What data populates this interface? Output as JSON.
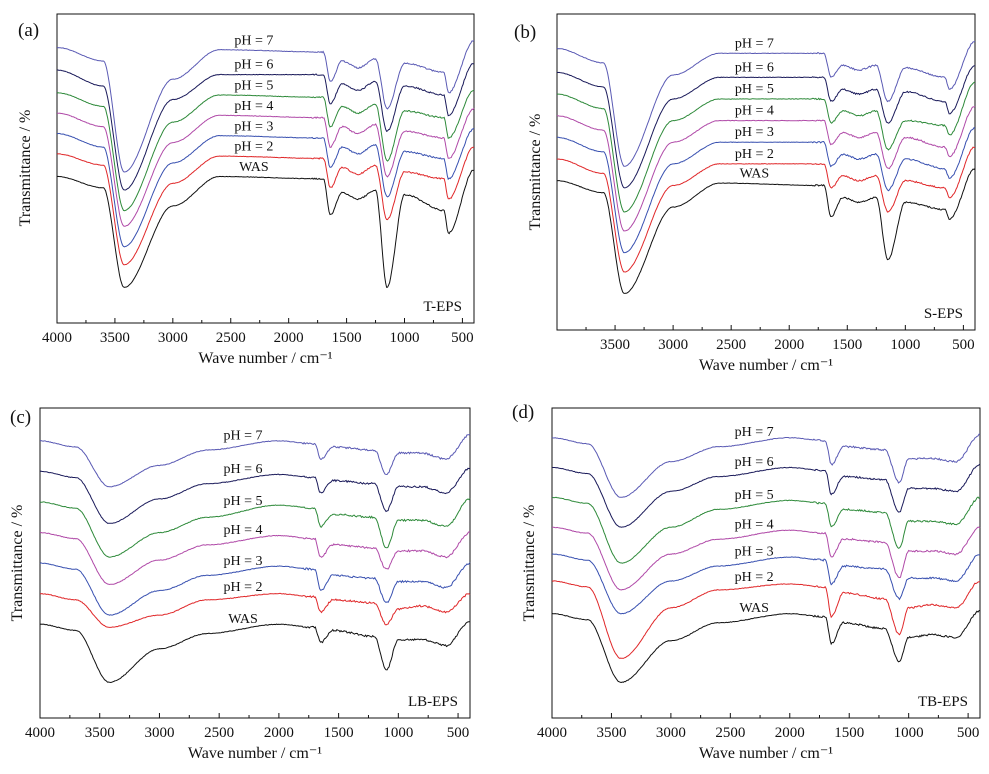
{
  "figure": {
    "panels": [
      {
        "letter": "(a)",
        "name": "T-EPS"
      },
      {
        "letter": "(b)",
        "name": "S-EPS"
      },
      {
        "letter": "(c)",
        "name": "LB-EPS"
      },
      {
        "letter": "(d)",
        "name": "TB-EPS"
      }
    ],
    "colors": {
      "pH = 7": "#5a5ab4",
      "pH = 6": "#1a1a5a",
      "pH = 5": "#2e8a3a",
      "pH = 4": "#b04aa8",
      "pH = 3": "#3850b0",
      "pH = 2": "#e0282a",
      "WAS": "#111111"
    }
  },
  "chart_data": [
    {
      "type": "line",
      "panel": "(a)",
      "title": "T-EPS",
      "xlabel": "Wave number / cm⁻¹",
      "ylabel": "Transmittance / %",
      "xlim": [
        4000,
        400
      ],
      "x_reversed": true,
      "xticks": [
        4000,
        3500,
        3000,
        2500,
        2000,
        1500,
        1000,
        500
      ],
      "y_ticks_shown": false,
      "series": [
        {
          "name": "pH = 7",
          "x": [
            4000,
            3600,
            3420,
            3000,
            2600,
            1700,
            1640,
            1540,
            1400,
            1250,
            1150,
            1000,
            660,
            620,
            400
          ],
          "values": [
            10.0,
            9.4,
            4.5,
            8.6,
            9.9,
            9.8,
            8.5,
            9.4,
            9.1,
            9.5,
            7.3,
            9.3,
            8.9,
            8.0,
            10.3
          ]
        },
        {
          "name": "pH = 6",
          "x": [
            4000,
            3600,
            3420,
            3000,
            2600,
            1700,
            1640,
            1540,
            1400,
            1250,
            1150,
            1000,
            660,
            620,
            400
          ],
          "values": [
            9.0,
            8.3,
            3.7,
            7.7,
            8.8,
            8.8,
            7.5,
            8.4,
            8.1,
            8.5,
            6.3,
            8.3,
            7.9,
            7.0,
            9.3
          ]
        },
        {
          "name": "pH = 5",
          "x": [
            4000,
            3600,
            3420,
            3000,
            2600,
            1700,
            1640,
            1540,
            1400,
            1250,
            1150,
            1000,
            660,
            620,
            400
          ],
          "values": [
            8.0,
            7.4,
            2.8,
            6.7,
            7.9,
            7.8,
            6.5,
            7.4,
            7.1,
            7.5,
            5.0,
            7.2,
            6.9,
            6.0,
            8.1
          ]
        },
        {
          "name": "pH = 4",
          "x": [
            4000,
            3600,
            3420,
            3000,
            2600,
            1700,
            1640,
            1540,
            1400,
            1250,
            1150,
            1000,
            660,
            620,
            400
          ],
          "values": [
            7.1,
            6.5,
            2.1,
            5.8,
            7.0,
            6.9,
            5.6,
            6.5,
            6.2,
            6.6,
            4.3,
            6.3,
            6.0,
            5.1,
            7.3
          ]
        },
        {
          "name": "pH = 3",
          "x": [
            4000,
            3600,
            3420,
            3000,
            2600,
            1700,
            1640,
            1540,
            1400,
            1250,
            1150,
            1000,
            660,
            620,
            400
          ],
          "values": [
            6.2,
            5.6,
            1.2,
            4.9,
            6.1,
            6.0,
            4.7,
            5.6,
            5.3,
            5.7,
            3.4,
            5.4,
            5.1,
            4.2,
            6.4
          ]
        },
        {
          "name": "pH = 2",
          "x": [
            4000,
            3600,
            3420,
            3000,
            2600,
            1700,
            1640,
            1540,
            1400,
            1250,
            1150,
            1000,
            660,
            620,
            400
          ],
          "values": [
            5.3,
            4.8,
            0.4,
            4.0,
            5.2,
            5.1,
            3.8,
            4.7,
            4.4,
            4.8,
            2.4,
            4.5,
            4.2,
            3.3,
            5.6
          ]
        },
        {
          "name": "WAS",
          "x": [
            4000,
            3600,
            3420,
            3000,
            2600,
            1700,
            1640,
            1540,
            1400,
            1250,
            1150,
            1000,
            660,
            620,
            400
          ],
          "values": [
            4.3,
            3.8,
            -0.6,
            3.0,
            4.3,
            4.2,
            2.6,
            3.6,
            3.3,
            3.7,
            -0.6,
            3.5,
            2.8,
            1.8,
            4.6
          ]
        }
      ]
    },
    {
      "type": "line",
      "panel": "(b)",
      "title": "S-EPS",
      "xlabel": "Wave number / cm⁻¹",
      "ylabel": "Transmittance / %",
      "xlim": [
        4000,
        400
      ],
      "x_reversed": true,
      "xticks": [
        3500,
        3000,
        2500,
        2000,
        1500,
        1000,
        500
      ],
      "y_ticks_shown": false,
      "series": [
        {
          "name": "pH = 7",
          "x": [
            4000,
            3600,
            3420,
            3000,
            2600,
            1700,
            1640,
            1540,
            1400,
            1250,
            1150,
            1000,
            660,
            620,
            400
          ],
          "values": [
            10.0,
            9.4,
            5.1,
            8.9,
            9.8,
            9.8,
            8.8,
            9.3,
            9.1,
            9.3,
            7.8,
            9.2,
            8.8,
            8.3,
            10.3
          ]
        },
        {
          "name": "pH = 6",
          "x": [
            4000,
            3600,
            3420,
            3000,
            2600,
            1700,
            1640,
            1540,
            1400,
            1250,
            1150,
            1000,
            660,
            620,
            400
          ],
          "values": [
            9.0,
            8.4,
            4.2,
            7.9,
            8.8,
            8.8,
            7.8,
            8.3,
            8.1,
            8.3,
            6.9,
            8.2,
            7.8,
            7.3,
            9.3
          ]
        },
        {
          "name": "pH = 5",
          "x": [
            4000,
            3600,
            3420,
            3000,
            2600,
            1700,
            1640,
            1540,
            1400,
            1250,
            1150,
            1000,
            660,
            620,
            400
          ],
          "values": [
            8.1,
            7.5,
            3.2,
            7.0,
            7.9,
            7.9,
            6.9,
            7.4,
            7.2,
            7.4,
            5.8,
            7.0,
            6.8,
            6.4,
            8.6
          ]
        },
        {
          "name": "pH = 4",
          "x": [
            4000,
            3600,
            3420,
            3000,
            2600,
            1700,
            1640,
            1540,
            1400,
            1250,
            1150,
            1000,
            660,
            620,
            400
          ],
          "values": [
            7.2,
            6.6,
            2.4,
            6.1,
            7.0,
            7.0,
            6.0,
            6.5,
            6.3,
            6.5,
            5.0,
            6.3,
            5.9,
            5.5,
            7.6
          ]
        },
        {
          "name": "pH = 3",
          "x": [
            4000,
            3600,
            3420,
            3000,
            2600,
            1700,
            1640,
            1540,
            1400,
            1250,
            1150,
            1000,
            660,
            620,
            400
          ],
          "values": [
            6.3,
            5.7,
            1.5,
            5.2,
            6.1,
            6.1,
            5.1,
            5.6,
            5.4,
            5.6,
            4.1,
            5.4,
            5.0,
            4.6,
            6.7
          ]
        },
        {
          "name": "pH = 2",
          "x": [
            4000,
            3600,
            3420,
            3000,
            2600,
            1700,
            1640,
            1540,
            1400,
            1250,
            1150,
            1000,
            660,
            620,
            400
          ],
          "values": [
            5.4,
            4.8,
            0.7,
            4.3,
            5.2,
            5.2,
            4.2,
            4.7,
            4.5,
            4.7,
            3.2,
            4.5,
            4.2,
            3.8,
            5.9
          ]
        },
        {
          "name": "WAS",
          "x": [
            4000,
            3600,
            3420,
            3000,
            2600,
            1700,
            1640,
            1540,
            1400,
            1250,
            1150,
            1000,
            660,
            620,
            400
          ],
          "values": [
            4.5,
            4.0,
            -0.2,
            3.4,
            4.4,
            4.3,
            3.0,
            3.8,
            3.6,
            3.8,
            1.2,
            3.6,
            3.3,
            2.9,
            5.0
          ]
        }
      ]
    },
    {
      "type": "line",
      "panel": "(c)",
      "title": "LB-EPS",
      "xlabel": "Wave number / cm⁻¹",
      "ylabel": "Transmittance / %",
      "xlim": [
        4000,
        400
      ],
      "x_reversed": true,
      "xticks": [
        4000,
        3500,
        3000,
        2500,
        2000,
        1500,
        1000,
        500
      ],
      "y_ticks_shown": false,
      "series": [
        {
          "name": "pH = 7",
          "x": [
            4000,
            3700,
            3420,
            3000,
            2600,
            2000,
            1700,
            1650,
            1550,
            1200,
            1100,
            1000,
            800,
            600,
            400
          ],
          "values": [
            10.0,
            9.8,
            8.5,
            9.2,
            9.7,
            10.0,
            9.9,
            9.4,
            9.8,
            9.7,
            8.9,
            9.6,
            9.6,
            9.4,
            10.2
          ]
        },
        {
          "name": "pH = 6",
          "x": [
            4000,
            3700,
            3420,
            3000,
            2600,
            2000,
            1700,
            1650,
            1550,
            1200,
            1100,
            1000,
            800,
            600,
            400
          ],
          "values": [
            9.0,
            8.8,
            7.3,
            8.1,
            8.6,
            8.9,
            8.8,
            8.3,
            8.7,
            8.6,
            7.7,
            8.5,
            8.5,
            8.3,
            9.1
          ]
        },
        {
          "name": "pH = 5",
          "x": [
            4000,
            3700,
            3420,
            3000,
            2600,
            2000,
            1700,
            1650,
            1550,
            1200,
            1100,
            1000,
            800,
            600,
            400
          ],
          "values": [
            8.0,
            7.8,
            6.2,
            7.0,
            7.5,
            7.9,
            7.8,
            7.2,
            7.6,
            7.5,
            6.5,
            7.4,
            7.4,
            7.2,
            8.1
          ]
        },
        {
          "name": "pH = 4",
          "x": [
            4000,
            3700,
            3420,
            3000,
            2600,
            2000,
            1700,
            1650,
            1550,
            1200,
            1100,
            1000,
            800,
            600,
            400
          ],
          "values": [
            7.0,
            6.8,
            5.3,
            6.1,
            6.6,
            6.9,
            6.8,
            6.2,
            6.6,
            6.5,
            5.8,
            6.4,
            6.4,
            6.2,
            7.0
          ]
        },
        {
          "name": "pH = 3",
          "x": [
            4000,
            3700,
            3420,
            3000,
            2600,
            2000,
            1700,
            1650,
            1550,
            1200,
            1100,
            1000,
            800,
            600,
            400
          ],
          "values": [
            6.0,
            5.8,
            4.3,
            5.1,
            5.6,
            5.9,
            5.8,
            5.1,
            5.6,
            5.5,
            4.7,
            5.4,
            5.4,
            5.2,
            6.0
          ]
        },
        {
          "name": "pH = 2",
          "x": [
            4000,
            3700,
            3420,
            3000,
            2600,
            2000,
            1700,
            1650,
            1550,
            1200,
            1100,
            1000,
            800,
            600,
            400
          ],
          "values": [
            5.0,
            4.8,
            3.9,
            4.3,
            4.8,
            5.0,
            4.9,
            4.4,
            4.8,
            4.7,
            4.0,
            4.5,
            4.6,
            4.4,
            5.0
          ]
        },
        {
          "name": "WAS",
          "x": [
            4000,
            3700,
            3420,
            3000,
            2600,
            2000,
            1700,
            1650,
            1550,
            1200,
            1100,
            1000,
            800,
            600,
            400
          ],
          "values": [
            4.0,
            3.8,
            2.1,
            3.2,
            3.7,
            4.0,
            3.9,
            3.4,
            3.8,
            3.6,
            2.5,
            3.5,
            3.5,
            3.3,
            4.1
          ]
        }
      ]
    },
    {
      "type": "line",
      "panel": "(d)",
      "title": "TB-EPS",
      "xlabel": "Wave number / cm⁻¹",
      "ylabel": "Transmittance / %",
      "xlim": [
        4000,
        400
      ],
      "x_reversed": true,
      "xticks": [
        4000,
        3500,
        3000,
        2500,
        2000,
        1500,
        1000,
        500
      ],
      "y_ticks_shown": false,
      "series": [
        {
          "name": "pH = 7",
          "x": [
            4000,
            3700,
            3420,
            3000,
            2600,
            2000,
            1700,
            1650,
            1550,
            1200,
            1080,
            1000,
            800,
            600,
            400
          ],
          "values": [
            10.0,
            9.8,
            8.0,
            9.2,
            9.7,
            10.0,
            9.9,
            9.1,
            9.7,
            9.6,
            8.5,
            9.3,
            9.3,
            9.2,
            10.1
          ]
        },
        {
          "name": "pH = 6",
          "x": [
            4000,
            3700,
            3420,
            3000,
            2600,
            2000,
            1700,
            1650,
            1550,
            1200,
            1080,
            1000,
            800,
            600,
            400
          ],
          "values": [
            9.0,
            8.8,
            7.0,
            8.2,
            8.7,
            9.0,
            8.9,
            8.1,
            8.7,
            8.6,
            7.5,
            8.3,
            8.3,
            8.2,
            9.1
          ]
        },
        {
          "name": "pH = 5",
          "x": [
            4000,
            3700,
            3420,
            3000,
            2600,
            2000,
            1700,
            1650,
            1550,
            1200,
            1080,
            1000,
            800,
            600,
            400
          ],
          "values": [
            8.0,
            7.8,
            5.8,
            7.0,
            7.6,
            7.9,
            7.8,
            7.0,
            7.6,
            7.5,
            6.3,
            7.2,
            7.2,
            7.1,
            8.0
          ]
        },
        {
          "name": "pH = 4",
          "x": [
            4000,
            3700,
            3420,
            3000,
            2600,
            2000,
            1700,
            1650,
            1550,
            1200,
            1080,
            1000,
            800,
            600,
            400
          ],
          "values": [
            7.0,
            6.8,
            4.9,
            6.1,
            6.6,
            6.9,
            6.8,
            6.0,
            6.6,
            6.5,
            5.3,
            6.2,
            6.2,
            6.1,
            7.0
          ]
        },
        {
          "name": "pH = 3",
          "x": [
            4000,
            3700,
            3420,
            3000,
            2600,
            2000,
            1700,
            1650,
            1550,
            1200,
            1080,
            1000,
            800,
            600,
            400
          ],
          "values": [
            6.1,
            5.9,
            4.1,
            5.2,
            5.7,
            6.0,
            5.9,
            5.1,
            5.7,
            5.6,
            4.6,
            5.3,
            5.3,
            5.2,
            6.1
          ]
        },
        {
          "name": "pH = 2",
          "x": [
            4000,
            3700,
            3420,
            3000,
            2600,
            2000,
            1700,
            1650,
            1550,
            1200,
            1080,
            1000,
            800,
            600,
            400
          ],
          "values": [
            5.2,
            5.0,
            2.6,
            4.3,
            4.9,
            5.1,
            5.0,
            4.0,
            4.8,
            4.6,
            3.4,
            4.3,
            4.4,
            4.3,
            5.2
          ]
        },
        {
          "name": "WAS",
          "x": [
            4000,
            3700,
            3420,
            3000,
            2600,
            2000,
            1700,
            1650,
            1550,
            1200,
            1080,
            1000,
            800,
            600,
            400
          ],
          "values": [
            4.1,
            3.9,
            1.8,
            3.2,
            3.8,
            4.1,
            4.0,
            3.1,
            3.8,
            3.6,
            2.5,
            3.3,
            3.4,
            3.3,
            4.2
          ]
        }
      ]
    }
  ]
}
